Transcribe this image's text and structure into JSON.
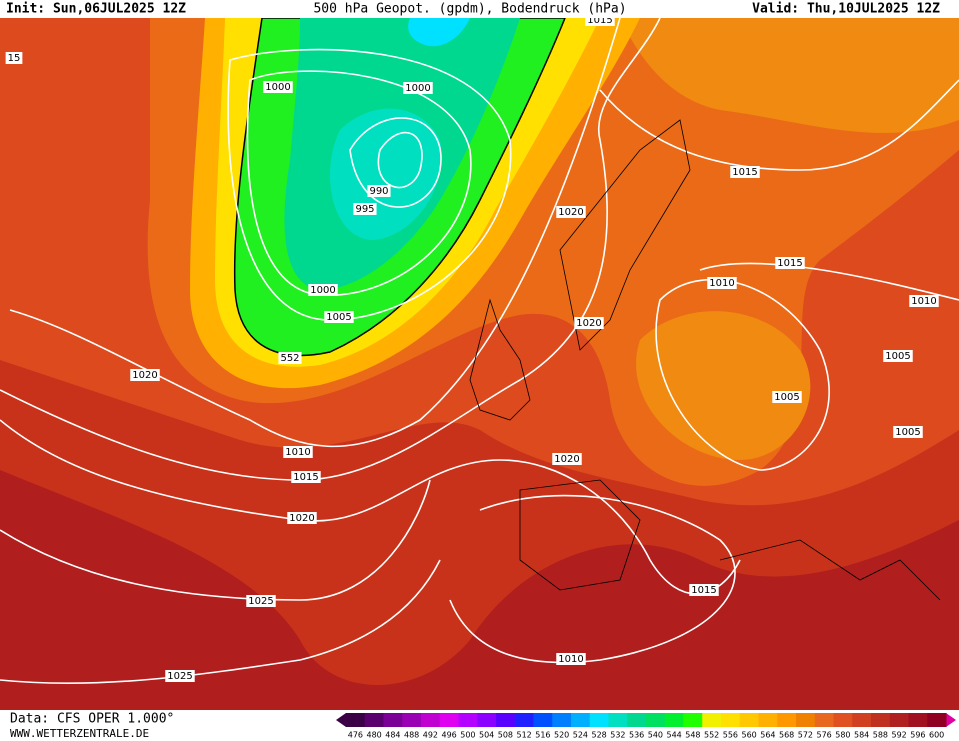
{
  "header": {
    "init": "Init: Sun,06JUL2025 12Z",
    "title": "500 hPa Geopot. (gpdm), Bodendruck (hPa)",
    "valid": "Valid: Thu,10JUL2025 12Z"
  },
  "isobar_labels": [
    "1015",
    "15",
    "1000",
    "1000",
    "990",
    "995",
    "1015",
    "1020",
    "1015",
    "1010",
    "1010",
    "1020",
    "1000",
    "1005",
    "552",
    "1005",
    "1020",
    "1005",
    "1005",
    "1010",
    "1020",
    "1015",
    "1020",
    "1015",
    "1025",
    "1010",
    "1025"
  ],
  "legend": {
    "levels": [
      476,
      480,
      484,
      488,
      492,
      496,
      500,
      504,
      508,
      512,
      516,
      520,
      524,
      528,
      532,
      536,
      540,
      544,
      548,
      552,
      556,
      560,
      564,
      568,
      572,
      576,
      580,
      584,
      588,
      592,
      596,
      600
    ],
    "colors": [
      "#3c0046",
      "#5a006e",
      "#7a0096",
      "#9a00b4",
      "#c000d0",
      "#e000f0",
      "#b400ff",
      "#8c00ff",
      "#5a00ff",
      "#2020ff",
      "#0050ff",
      "#0080ff",
      "#00b0ff",
      "#00e0ff",
      "#00e0c0",
      "#00d890",
      "#00e060",
      "#00f030",
      "#20ff00",
      "#f0f000",
      "#ffe000",
      "#ffc800",
      "#ffb000",
      "#ff9800",
      "#f08000",
      "#e86820",
      "#e05020",
      "#d04020",
      "#c03020",
      "#b02020",
      "#a01020",
      "#900020"
    ]
  },
  "footer": {
    "source": "Data: CFS OPER 1.000°",
    "site": "WWW.WETTERZENTRALE.DE"
  }
}
